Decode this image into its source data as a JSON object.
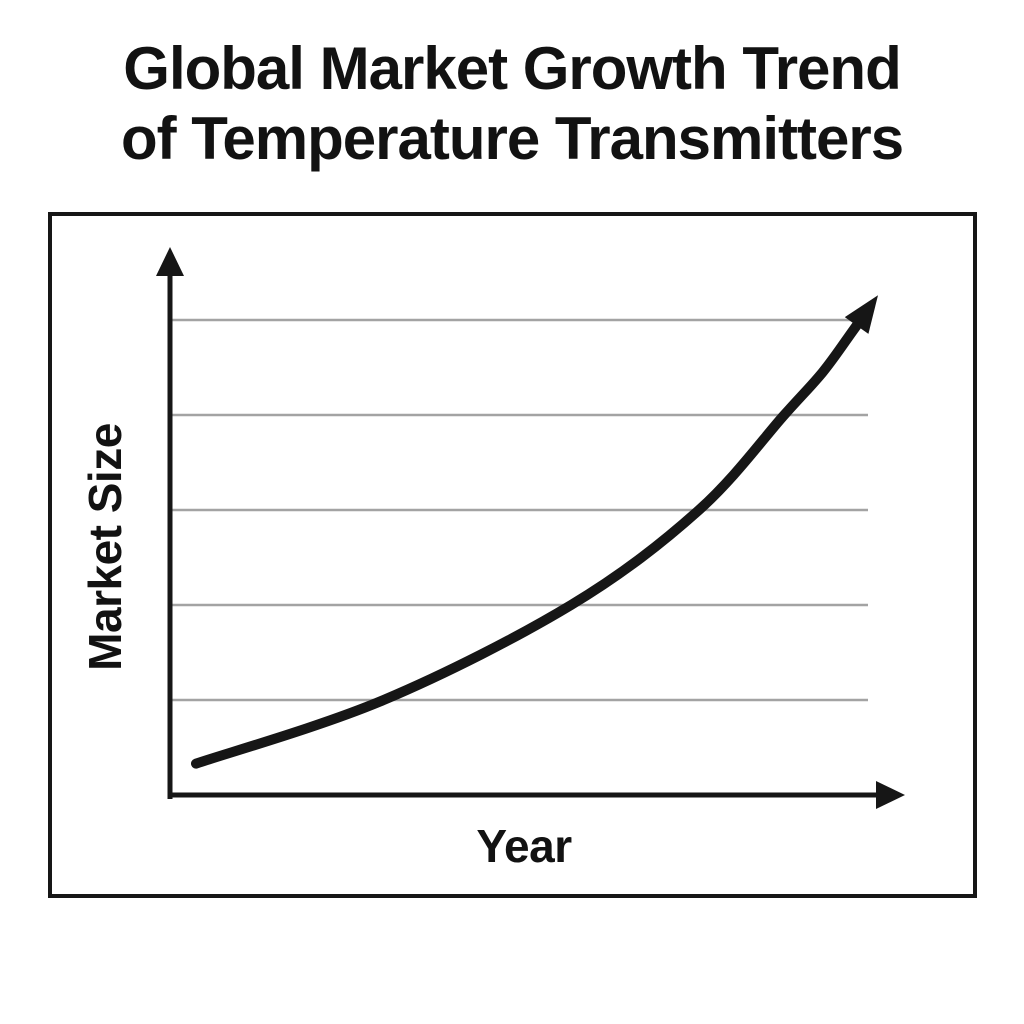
{
  "title_lines": [
    "Global Market Growth Trend",
    "of Temperature Transmitters"
  ],
  "chart_data": {
    "type": "line",
    "title": "Global Market Growth Trend of Temperature Transmitters",
    "xlabel": "Year",
    "ylabel": "Market Size",
    "x_tick_labels": [],
    "y_tick_labels": [],
    "legend": null,
    "grid": {
      "horizontal_lines": 5,
      "vertical_lines": 0,
      "color": "#a3a3a3"
    },
    "axes": {
      "style": "arrow-tipped axes, no ticks, no numeric scale",
      "color": "#161616"
    },
    "series": [
      {
        "name": "Market size over time",
        "shape": "accelerating exponential growth curve ending in an arrow",
        "color": "#161616",
        "ends_with_arrow": true,
        "x_units": "relative position along Year axis (0-8, no labels shown)",
        "y_units": "gridline intervals above the x-axis (estimated)",
        "points": [
          {
            "x": 0.0,
            "y": 0.33
          },
          {
            "x": 2.2,
            "y": 1.0
          },
          {
            "x": 4.4,
            "y": 2.0
          },
          {
            "x": 5.9,
            "y": 3.0
          },
          {
            "x": 6.9,
            "y": 4.0
          },
          {
            "x": 7.35,
            "y": 4.45
          },
          {
            "x": 7.7,
            "y": 4.88
          },
          {
            "x": 8.0,
            "y": 5.26
          }
        ]
      }
    ]
  },
  "colors": {
    "ink": "#161616",
    "gridline": "#a3a3a3",
    "background": "#ffffff"
  }
}
